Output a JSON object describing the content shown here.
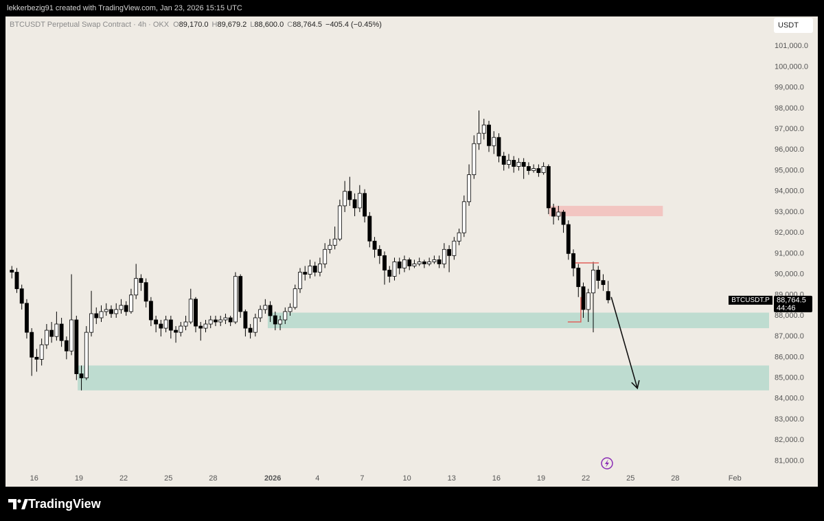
{
  "page": {
    "credit": "lekkerbezig91 created with TradingView.com, Jan 23, 2026 15:15 UTC",
    "brand": "TradingView",
    "currency": "USDT"
  },
  "chart_data": {
    "type": "candlestick",
    "legend": {
      "symbol": "BTCUSDT Perpetual Swap Contract · 4h · OKX",
      "o_label": "O",
      "o": "89,170.0",
      "h_label": "H",
      "h": "89,679.2",
      "l_label": "L",
      "l": "88,600.0",
      "c_label": "C",
      "c": "88,764.5",
      "change": "−405.4 (−0.45%)"
    },
    "price_label": {
      "symbol": "BTCUSDT.P",
      "price": "88,764.5",
      "countdown": "44:46"
    },
    "x": [
      "2025-12-14T08:00",
      "2025-12-14T16:00",
      "2025-12-15T00:00",
      "2025-12-15T08:00",
      "2025-12-15T16:00",
      "2025-12-16T00:00",
      "2025-12-16T08:00",
      "2025-12-16T16:00",
      "2025-12-17T00:00",
      "2025-12-17T08:00",
      "2025-12-17T16:00",
      "2025-12-18T00:00",
      "2025-12-18T08:00",
      "2025-12-18T16:00",
      "2025-12-19T00:00",
      "2025-12-19T08:00",
      "2025-12-19T16:00",
      "2025-12-20T00:00",
      "2025-12-20T08:00",
      "2025-12-20T16:00",
      "2025-12-21T00:00",
      "2025-12-21T08:00",
      "2025-12-21T16:00",
      "2025-12-22T00:00",
      "2025-12-22T08:00",
      "2025-12-22T16:00",
      "2025-12-23T00:00",
      "2025-12-23T08:00",
      "2025-12-23T16:00",
      "2025-12-24T00:00",
      "2025-12-24T08:00",
      "2025-12-24T16:00",
      "2025-12-25T00:00",
      "2025-12-25T08:00",
      "2025-12-25T16:00",
      "2025-12-26T00:00",
      "2025-12-26T08:00",
      "2025-12-26T16:00",
      "2025-12-27T00:00",
      "2025-12-27T08:00",
      "2025-12-27T16:00",
      "2025-12-28T00:00",
      "2025-12-28T08:00",
      "2025-12-28T16:00",
      "2025-12-29T00:00",
      "2025-12-29T08:00",
      "2025-12-29T16:00",
      "2025-12-30T00:00",
      "2025-12-30T08:00",
      "2025-12-30T16:00",
      "2025-12-31T00:00",
      "2025-12-31T08:00",
      "2025-12-31T16:00",
      "2026-01-01T00:00",
      "2026-01-01T08:00",
      "2026-01-01T16:00",
      "2026-01-02T00:00",
      "2026-01-02T08:00",
      "2026-01-02T16:00",
      "2026-01-03T00:00",
      "2026-01-03T08:00",
      "2026-01-03T16:00",
      "2026-01-04T00:00",
      "2026-01-04T08:00",
      "2026-01-04T16:00",
      "2026-01-05T00:00",
      "2026-01-05T08:00",
      "2026-01-05T16:00",
      "2026-01-06T00:00",
      "2026-01-06T08:00",
      "2026-01-06T16:00",
      "2026-01-07T00:00",
      "2026-01-07T08:00",
      "2026-01-07T16:00",
      "2026-01-08T00:00",
      "2026-01-08T08:00",
      "2026-01-08T16:00",
      "2026-01-09T00:00",
      "2026-01-09T08:00",
      "2026-01-09T16:00",
      "2026-01-10T00:00",
      "2026-01-10T08:00",
      "2026-01-10T16:00",
      "2026-01-11T00:00",
      "2026-01-11T08:00",
      "2026-01-11T16:00",
      "2026-01-12T00:00",
      "2026-01-12T08:00",
      "2026-01-12T16:00",
      "2026-01-13T00:00",
      "2026-01-13T08:00",
      "2026-01-13T16:00",
      "2026-01-14T00:00",
      "2026-01-14T08:00",
      "2026-01-14T16:00",
      "2026-01-15T00:00",
      "2026-01-15T08:00",
      "2026-01-15T16:00",
      "2026-01-16T00:00",
      "2026-01-16T08:00",
      "2026-01-16T16:00",
      "2026-01-17T00:00",
      "2026-01-17T08:00",
      "2026-01-17T16:00",
      "2026-01-18T00:00",
      "2026-01-18T08:00",
      "2026-01-18T16:00",
      "2026-01-19T00:00",
      "2026-01-19T08:00",
      "2026-01-19T16:00",
      "2026-01-20T00:00",
      "2026-01-20T08:00",
      "2026-01-20T16:00",
      "2026-01-21T00:00",
      "2026-01-21T08:00",
      "2026-01-21T16:00",
      "2026-01-22T00:00",
      "2026-01-22T08:00",
      "2026-01-22T16:00",
      "2026-01-23T00:00",
      "2026-01-23T08:00"
    ],
    "open": [
      90200,
      90100,
      89300,
      88600,
      87200,
      86000,
      85900,
      86600,
      87300,
      87000,
      87600,
      86800,
      86300,
      87800,
      85200,
      85000,
      87200,
      88100,
      87900,
      88200,
      88300,
      88100,
      88300,
      88500,
      88200,
      89000,
      89800,
      89600,
      88700,
      87800,
      87600,
      87400,
      87800,
      87300,
      87200,
      87500,
      87700,
      88800,
      87500,
      87400,
      87600,
      87800,
      87700,
      87800,
      87900,
      87700,
      89900,
      88200,
      87400,
      87200,
      87900,
      88300,
      88500,
      88000,
      87600,
      87800,
      88200,
      88400,
      89300,
      90100,
      90000,
      90400,
      90100,
      90500,
      91200,
      91400,
      91700,
      93300,
      94000,
      93600,
      93200,
      93900,
      92800,
      91600,
      91200,
      90900,
      90200,
      89900,
      90600,
      90300,
      90700,
      90400,
      90500,
      90600,
      90500,
      90600,
      90700,
      90500,
      91200,
      90900,
      91600,
      92000,
      93500,
      94800,
      96300,
      96800,
      97200,
      96200,
      96600,
      95700,
      95300,
      95500,
      95200,
      95400,
      95200,
      95000,
      95100,
      94900,
      95200,
      93200,
      92800,
      93000,
      92400,
      91000,
      90300,
      89400,
      88300,
      89100,
      90200,
      89700,
      89170
    ],
    "high": [
      90400,
      90300,
      89500,
      88800,
      87400,
      86400,
      86900,
      87600,
      87700,
      88200,
      87900,
      87000,
      90000,
      88000,
      85600,
      87500,
      89200,
      88400,
      88500,
      88600,
      88500,
      88600,
      88800,
      88700,
      89300,
      90500,
      90000,
      89800,
      88900,
      88000,
      87800,
      88000,
      88000,
      87500,
      87700,
      88000,
      89300,
      88900,
      87700,
      87800,
      88000,
      88000,
      88000,
      88100,
      88000,
      90100,
      90000,
      88300,
      87600,
      88100,
      88500,
      88800,
      88700,
      88200,
      88000,
      88400,
      88600,
      89500,
      90300,
      90400,
      90700,
      90600,
      90800,
      91500,
      91700,
      92300,
      93600,
      94500,
      94700,
      93900,
      94300,
      94100,
      93000,
      91800,
      91400,
      91100,
      90400,
      90800,
      90800,
      90900,
      90800,
      90700,
      90800,
      90700,
      90800,
      90900,
      90900,
      91500,
      91400,
      91800,
      92200,
      93800,
      95300,
      96700,
      97900,
      97500,
      97400,
      96900,
      96800,
      95900,
      95800,
      95700,
      95600,
      95600,
      95400,
      95300,
      95300,
      95400,
      95300,
      93400,
      93300,
      93100,
      92600,
      91200,
      90500,
      89600,
      89300,
      90600,
      90400,
      90000,
      89679.2
    ],
    "low": [
      89800,
      89100,
      88300,
      86900,
      85100,
      85300,
      85600,
      86400,
      86700,
      86800,
      86500,
      85900,
      86100,
      84900,
      84400,
      84900,
      87000,
      87600,
      87700,
      88000,
      87900,
      87900,
      88100,
      88000,
      88100,
      88800,
      89200,
      88400,
      87500,
      87200,
      87000,
      87200,
      86900,
      86700,
      87000,
      87300,
      87600,
      87200,
      86800,
      87200,
      87400,
      87500,
      87500,
      87600,
      87500,
      87600,
      87900,
      87000,
      86900,
      87000,
      87700,
      88100,
      87700,
      87300,
      87300,
      87600,
      88000,
      88300,
      89100,
      89700,
      89800,
      89900,
      89900,
      90300,
      91000,
      91200,
      91600,
      93000,
      93300,
      92800,
      93000,
      92500,
      91300,
      90800,
      90500,
      89500,
      89600,
      89700,
      90000,
      90100,
      90200,
      90300,
      90400,
      90300,
      90400,
      90500,
      90300,
      90300,
      90100,
      90700,
      91400,
      91800,
      93300,
      94600,
      96000,
      96500,
      95900,
      95800,
      95400,
      95000,
      95100,
      94900,
      95000,
      94600,
      94800,
      94900,
      94700,
      94800,
      92900,
      92400,
      92600,
      92000,
      90700,
      89900,
      88900,
      87900,
      87700,
      87200,
      89300,
      89200,
      88600
    ],
    "close": [
      90100,
      89300,
      88600,
      87200,
      86000,
      85900,
      86600,
      87300,
      87000,
      87600,
      86800,
      86300,
      87800,
      85200,
      85000,
      87200,
      88100,
      87900,
      88200,
      88300,
      88100,
      88300,
      88500,
      88200,
      89000,
      89800,
      89600,
      88700,
      87800,
      87600,
      87400,
      87800,
      87300,
      87200,
      87500,
      87700,
      88800,
      87500,
      87400,
      87600,
      87800,
      87700,
      87800,
      87900,
      87700,
      89900,
      88200,
      87400,
      87200,
      87900,
      88300,
      88500,
      88000,
      87600,
      87800,
      88200,
      88400,
      89300,
      90100,
      90000,
      90400,
      90100,
      90500,
      91200,
      91400,
      91700,
      93300,
      94000,
      93600,
      93200,
      93900,
      92800,
      91600,
      91200,
      90900,
      90200,
      89900,
      90600,
      90300,
      90700,
      90400,
      90500,
      90600,
      90500,
      90600,
      90700,
      90500,
      91200,
      90900,
      91600,
      92000,
      93500,
      94800,
      96300,
      96800,
      97200,
      96200,
      96600,
      95700,
      95300,
      95500,
      95200,
      95400,
      95200,
      95000,
      95100,
      94900,
      95200,
      93200,
      92800,
      93000,
      92400,
      91000,
      90300,
      89400,
      88300,
      89100,
      90200,
      89700,
      89500,
      88764.5
    ],
    "up_color": "#ffffff",
    "down_color": "#000000",
    "zones": [
      {
        "color": "#f2c5c1",
        "ylim": [
          92800,
          93300
        ],
        "xlim": [
          "2026-01-19T13:00",
          "2026-01-27T04:00"
        ]
      },
      {
        "color": "#bedcd0",
        "ylim": [
          87400,
          88150
        ],
        "xlim": [
          "2025-12-31T16:00",
          "2026-02-03T07:00"
        ]
      },
      {
        "color": "#bedcd0",
        "ylim": [
          84400,
          85600
        ],
        "xlim": [
          "2025-12-18T22:00",
          "2026-02-03T07:00"
        ]
      }
    ],
    "lines": [
      {
        "color": "#e0605a",
        "x": [
          "2026-01-21T07:00",
          "2026-01-22T21:00"
        ],
        "y": [
          90550,
          90550
        ]
      },
      {
        "color": "#e0605a",
        "x": [
          "2026-01-20T19:00",
          "2026-01-21T16:00",
          "2026-01-21T16:00"
        ],
        "y": [
          87700,
          87700,
          88900
        ]
      }
    ],
    "arrow": {
      "color": "#111111",
      "x": [
        "2026-01-23T17:00",
        "2026-01-25T11:00"
      ],
      "y": [
        88900,
        84500
      ]
    },
    "xlim": [
      "2025-12-14T04:00",
      "2026-02-03T07:00"
    ],
    "ylim": [
      80550,
      102400
    ],
    "xticks": [
      {
        "value": "2025-12-16",
        "label": "16"
      },
      {
        "value": "2025-12-19",
        "label": "19"
      },
      {
        "value": "2025-12-22",
        "label": "22"
      },
      {
        "value": "2025-12-25",
        "label": "25"
      },
      {
        "value": "2025-12-28",
        "label": "28"
      },
      {
        "value": "2026-01-01",
        "label": "2026"
      },
      {
        "value": "2026-01-04",
        "label": "4"
      },
      {
        "value": "2026-01-07",
        "label": "7"
      },
      {
        "value": "2026-01-10",
        "label": "10"
      },
      {
        "value": "2026-01-13",
        "label": "13"
      },
      {
        "value": "2026-01-16",
        "label": "16"
      },
      {
        "value": "2026-01-19",
        "label": "19"
      },
      {
        "value": "2026-01-22",
        "label": "22"
      },
      {
        "value": "2026-01-25",
        "label": "25"
      },
      {
        "value": "2026-01-28",
        "label": "28"
      },
      {
        "value": "2026-02-01",
        "label": "Feb"
      }
    ],
    "yticks": [
      {
        "value": 81000,
        "label": "81,000.0"
      },
      {
        "value": 82000,
        "label": "82,000.0"
      },
      {
        "value": 83000,
        "label": "83,000.0"
      },
      {
        "value": 84000,
        "label": "84,000.0"
      },
      {
        "value": 85000,
        "label": "85,000.0"
      },
      {
        "value": 86000,
        "label": "86,000.0"
      },
      {
        "value": 87000,
        "label": "87,000.0"
      },
      {
        "value": 88000,
        "label": "88,000.0"
      },
      {
        "value": 89000,
        "label": "89,000.0"
      },
      {
        "value": 90000,
        "label": "90,000.0"
      },
      {
        "value": 91000,
        "label": "91,000.0"
      },
      {
        "value": 92000,
        "label": "92,000.0"
      },
      {
        "value": 93000,
        "label": "93,000.0"
      },
      {
        "value": 94000,
        "label": "94,000.0"
      },
      {
        "value": 95000,
        "label": "95,000.0"
      },
      {
        "value": 96000,
        "label": "96,000.0"
      },
      {
        "value": 97000,
        "label": "97,000.0"
      },
      {
        "value": 98000,
        "label": "98,000.0"
      },
      {
        "value": 99000,
        "label": "99,000.0"
      },
      {
        "value": 100000,
        "label": "100,000.0"
      },
      {
        "value": 101000,
        "label": "101,000.0"
      }
    ],
    "grid": false
  }
}
